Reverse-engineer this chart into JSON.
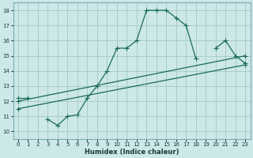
{
  "xlabel": "Humidex (Indice chaleur)",
  "bg_color": "#cce8e8",
  "grid_color": "#aacccc",
  "line_color": "#1a6b5a",
  "xlim": [
    -0.5,
    23.5
  ],
  "ylim": [
    9.5,
    18.5
  ],
  "xticks": [
    0,
    1,
    2,
    3,
    4,
    5,
    6,
    7,
    8,
    9,
    10,
    11,
    12,
    13,
    14,
    15,
    16,
    17,
    18,
    19,
    20,
    21,
    22,
    23
  ],
  "yticks": [
    10,
    11,
    12,
    13,
    14,
    15,
    16,
    17,
    18
  ],
  "curve_segments": [
    {
      "x": [
        0,
        1
      ],
      "y": [
        12.2,
        12.2
      ]
    },
    {
      "x": [
        3,
        4,
        5,
        6,
        7,
        8,
        9,
        10,
        11,
        12,
        13,
        14,
        15,
        16,
        17,
        18
      ],
      "y": [
        10.8,
        10.4,
        11.0,
        11.1,
        12.2,
        13.0,
        14.0,
        15.5,
        15.5,
        16.0,
        18.0,
        18.0,
        18.0,
        17.5,
        17.0,
        14.8
      ]
    },
    {
      "x": [
        20,
        21,
        22,
        23
      ],
      "y": [
        15.5,
        16.0,
        15.0,
        14.5
      ]
    }
  ],
  "line2_x": [
    0,
    23
  ],
  "line2_y": [
    11.5,
    14.4
  ],
  "line3_x": [
    0,
    23
  ],
  "line3_y": [
    12.0,
    15.0
  ]
}
